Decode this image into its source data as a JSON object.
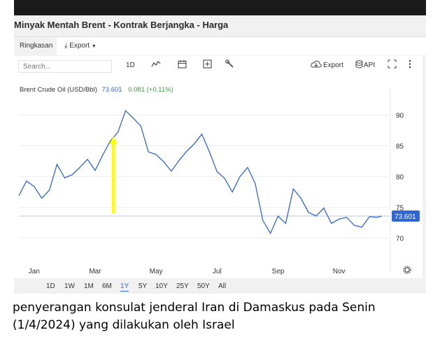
{
  "page": {
    "title": "Minyak Mentah Brent - Kontrak Berjangka - Harga",
    "caption": "penyerangan konsulat jenderal Iran di Damaskus pada Senin (1/4/2024) yang dilakukan oleh Israel"
  },
  "tabs": {
    "summary": "Ringkasan",
    "export": "Export"
  },
  "toolbar": {
    "search_placeholder": "Search...",
    "interval": "1D",
    "export_label": "Export",
    "api_label": "API",
    "icons": [
      "line-chart-icon",
      "calendar-icon",
      "plus-icon",
      "wrench-icon",
      "cloud-download-icon",
      "database-icon",
      "fullscreen-icon",
      "more-icon",
      "settings-icon"
    ]
  },
  "legend": {
    "series": "Brent Crude Oil (USD/Bbl)",
    "last": "73.601",
    "change": "0.081 (+0.11%)"
  },
  "ranges": [
    "1D",
    "1W",
    "1M",
    "6M",
    "1Y",
    "5Y",
    "10Y",
    "25Y",
    "50Y",
    "All"
  ],
  "active_range": "1Y",
  "colors": {
    "line": "#2f66d6",
    "arrow": "#ffff00",
    "change_positive": "#3ca23c",
    "last_label_bg": "#2f66d6"
  },
  "chart_data": {
    "type": "line",
    "xlabel": "",
    "ylabel": "",
    "ylim": [
      66,
      93
    ],
    "yticks": [
      70,
      75,
      80,
      85,
      90
    ],
    "xticks": [
      "Jan",
      "Mar",
      "May",
      "Jul",
      "Sep",
      "Nov"
    ],
    "xtick_positions": [
      0.5,
      2.5,
      4.5,
      6.5,
      8.5,
      10.5
    ],
    "last_value_label": "73.601",
    "x_months": [
      0,
      0.25,
      0.5,
      0.75,
      1,
      1.25,
      1.5,
      1.75,
      2,
      2.25,
      2.5,
      2.75,
      3,
      3.25,
      3.5,
      3.75,
      4,
      4.25,
      4.5,
      4.75,
      5,
      5.25,
      5.5,
      5.75,
      6,
      6.25,
      6.5,
      6.75,
      7,
      7.25,
      7.5,
      7.75,
      8,
      8.25,
      8.5,
      8.75,
      9,
      9.25,
      9.5,
      9.75,
      10,
      10.25,
      10.5,
      10.75,
      11,
      11.25,
      11.5,
      11.75,
      11.9
    ],
    "series": [
      {
        "values": [
          76.9,
          79.3,
          78.4,
          76.5,
          77.8,
          82.0,
          79.8,
          80.3,
          81.5,
          82.8,
          81.0,
          83.5,
          85.8,
          87.2,
          90.7,
          89.5,
          88.2,
          84.0,
          83.6,
          82.4,
          80.9,
          82.6,
          84.1,
          85.3,
          86.9,
          84.0,
          80.8,
          79.7,
          77.5,
          80.0,
          81.5,
          78.9,
          72.9,
          70.8,
          73.6,
          72.4,
          78.0,
          76.5,
          74.2,
          73.6,
          74.9,
          72.4,
          73.1,
          73.4,
          72.1,
          71.8,
          73.5,
          73.4,
          73.6
        ]
      }
    ],
    "annotation": {
      "type": "arrow",
      "direction": "up",
      "x_month": 3.1,
      "from_value": 74.0,
      "to_value": 86.5
    }
  }
}
